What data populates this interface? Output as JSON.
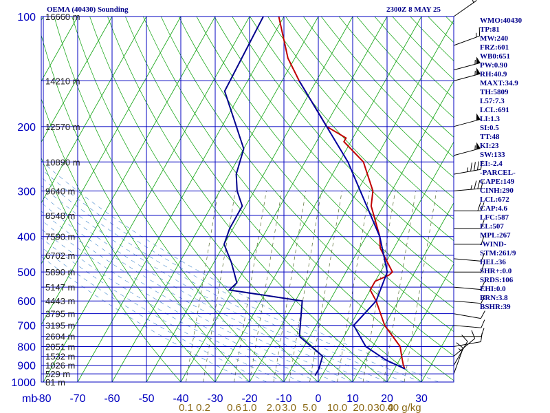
{
  "header": {
    "title": "OEMA (40430) Sounding",
    "time": "2300Z  8 MAY 25"
  },
  "indices": [
    "WMO:40430",
    "TP:81",
    "MW:240",
    "FRZ:601",
    "WB0:651",
    "PW:0.90",
    "RH:40.9",
    "MAXT:34.9",
    "TH:5809",
    "L57:7.3",
    "LCL:691",
    "LI:1.3",
    "SI:0.5",
    "TT:48",
    "KI:23",
    "SW:133",
    "EI:-2.4",
    "-PARCEL-",
    "CAPE:149",
    "CINH:290",
    "LCL:672",
    "CAP:4.6",
    "LFC:587",
    "EL:507",
    "MPL:267",
    "-WIND-",
    "STM:261/9",
    "HEL:36",
    "SHR+:0.0",
    "SRDS:106",
    "EHI:0.0",
    "BRN:3.8",
    "BSHR:39"
  ],
  "chart_data": {
    "type": "line",
    "title": "OEMA (40430) Sounding",
    "xlabel": "",
    "ylabel": "mb",
    "x_unit_label": "mb",
    "xlim": [
      -80,
      30
    ],
    "ylim": [
      1000,
      100
    ],
    "y_scale": "log",
    "grid": true,
    "pressure_ticks": [
      100,
      200,
      300,
      400,
      500,
      600,
      700,
      800,
      900,
      1000
    ],
    "temp_ticks": [
      -80,
      -70,
      -60,
      -50,
      -40,
      -30,
      -20,
      -10,
      0,
      10,
      20,
      30
    ],
    "mixing_ratio_labels": [
      {
        "label": "0.1",
        "t": -38.5
      },
      {
        "label": "0.2",
        "t": -33.5
      },
      {
        "label": "0.6",
        "t": -24.5
      },
      {
        "label": "1.0",
        "t": -20.0
      },
      {
        "label": "2.0",
        "t": -13.0
      },
      {
        "label": "3.0",
        "t": -8.5
      },
      {
        "label": "5.0",
        "t": -2.5
      },
      {
        "label": "10.0",
        "t": 5.5
      },
      {
        "label": "20.0",
        "t": 13.0
      },
      {
        "label": "30.0",
        "t": 19.0
      },
      {
        "label": "40 g/kg",
        "t": 25.0
      }
    ],
    "height_labels": [
      {
        "p": 100,
        "text": "16660 m"
      },
      {
        "p": 150,
        "text": "14210 m"
      },
      {
        "p": 200,
        "text": "12570 m"
      },
      {
        "p": 250,
        "text": "10890 m"
      },
      {
        "p": 300,
        "text": "9640 m"
      },
      {
        "p": 350,
        "text": "8548 m"
      },
      {
        "p": 400,
        "text": "7590 m"
      },
      {
        "p": 450,
        "text": "6702 m"
      },
      {
        "p": 500,
        "text": "5890 m"
      },
      {
        "p": 550,
        "text": "5147 m"
      },
      {
        "p": 600,
        "text": "4443 m"
      },
      {
        "p": 650,
        "text": "3795 m"
      },
      {
        "p": 700,
        "text": "3195 m"
      },
      {
        "p": 750,
        "text": "2604 m"
      },
      {
        "p": 800,
        "text": "2051 m"
      },
      {
        "p": 850,
        "text": "1532 m"
      },
      {
        "p": 900,
        "text": "1026 m"
      },
      {
        "p": 950,
        "text": "529 m"
      },
      {
        "p": 1000,
        "text": "81 m"
      }
    ],
    "series": [
      {
        "name": "temperature",
        "color": "#c00000",
        "points": [
          [
            100,
            -71.5
          ],
          [
            130,
            -62
          ],
          [
            150,
            -55
          ],
          [
            200,
            -39.5
          ],
          [
            215,
            -32
          ],
          [
            220,
            -32
          ],
          [
            250,
            -23
          ],
          [
            300,
            -15.5
          ],
          [
            330,
            -13.5
          ],
          [
            400,
            -6
          ],
          [
            430,
            -4
          ],
          [
            500,
            3.5
          ],
          [
            510,
            3
          ],
          [
            530,
            0
          ],
          [
            560,
            0
          ],
          [
            600,
            3.5
          ],
          [
            700,
            10
          ],
          [
            800,
            18
          ],
          [
            850,
            20
          ],
          [
            900,
            22
          ],
          [
            920,
            23
          ]
        ]
      },
      {
        "name": "dewpoint",
        "color": "#00008b",
        "points": [
          [
            960,
            -2
          ],
          [
            920,
            -2
          ],
          [
            850,
            -3
          ],
          [
            750,
            -13
          ],
          [
            600,
            -18
          ],
          [
            560,
            -41
          ],
          [
            535,
            -40
          ],
          [
            470,
            -45
          ],
          [
            420,
            -50
          ],
          [
            380,
            -51
          ],
          [
            330,
            -51
          ],
          [
            300,
            -55
          ],
          [
            270,
            -58
          ],
          [
            230,
            -60
          ],
          [
            160,
            -75
          ],
          [
            100,
            -76
          ]
        ]
      },
      {
        "name": "parcel",
        "color": "#0000a0",
        "points": [
          [
            150,
            -55
          ],
          [
            250,
            -27.5
          ],
          [
            400,
            -6
          ],
          [
            500,
            2
          ],
          [
            600,
            3.5
          ],
          [
            700,
            1
          ],
          [
            800,
            8
          ],
          [
            870,
            16
          ],
          [
            920,
            23
          ]
        ]
      }
    ],
    "wind_barbs": [
      {
        "p": 100,
        "dir": 235,
        "spd": 15
      },
      {
        "p": 120,
        "dir": 250,
        "spd": 15
      },
      {
        "p": 140,
        "dir": 255,
        "spd": 55
      },
      {
        "p": 150,
        "dir": 255,
        "spd": 55
      },
      {
        "p": 200,
        "dir": 255,
        "spd": 50
      },
      {
        "p": 240,
        "dir": 255,
        "spd": 55
      },
      {
        "p": 270,
        "dir": 260,
        "spd": 45
      },
      {
        "p": 300,
        "dir": 265,
        "spd": 35
      },
      {
        "p": 340,
        "dir": 270,
        "spd": 20
      },
      {
        "p": 380,
        "dir": 270,
        "spd": 10
      },
      {
        "p": 420,
        "dir": 270,
        "spd": 10
      },
      {
        "p": 460,
        "dir": 275,
        "spd": 10
      },
      {
        "p": 500,
        "dir": 270,
        "spd": 10
      },
      {
        "p": 550,
        "dir": 275,
        "spd": 10
      },
      {
        "p": 600,
        "dir": 275,
        "spd": 10
      },
      {
        "p": 650,
        "dir": 280,
        "spd": 10
      },
      {
        "p": 700,
        "dir": 275,
        "spd": 10
      },
      {
        "p": 750,
        "dir": 270,
        "spd": 10
      },
      {
        "p": 800,
        "dir": 260,
        "spd": 10
      },
      {
        "p": 850,
        "dir": 230,
        "spd": 10
      },
      {
        "p": 900,
        "dir": 210,
        "spd": 10
      },
      {
        "p": 950,
        "dir": 200,
        "spd": 15
      }
    ]
  }
}
